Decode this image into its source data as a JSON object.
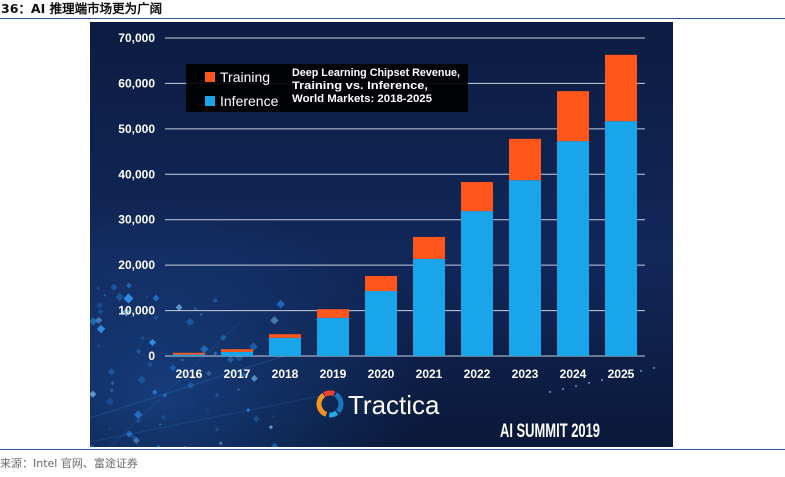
{
  "header": {
    "title": "36：AI 推理端市场更为广阔"
  },
  "footer": {
    "source": "来源：Intel 官网、富途证券"
  },
  "colors": {
    "rule": "#2f5597",
    "chart_background": "#12285a",
    "gridline": "#c8d0de"
  },
  "branding": {
    "logo_text": "Tractica",
    "event": "AI SUMMIT 2019"
  },
  "chart_data": {
    "type": "bar",
    "stacked": true,
    "title_lines": [
      "Deep Learning Chipset Revenue,",
      "Training vs. Inference,",
      "World Markets: 2018-2025"
    ],
    "categories": [
      "2016",
      "2017",
      "2018",
      "2019",
      "2020",
      "2021",
      "2022",
      "2023",
      "2024",
      "2025"
    ],
    "series": [
      {
        "name": "Inference",
        "color": "#18a5ea",
        "values": [
          300,
          900,
          4000,
          8400,
          14300,
          21400,
          31900,
          38700,
          47300,
          51700
        ]
      },
      {
        "name": "Training",
        "color": "#ff561c",
        "values": [
          400,
          600,
          800,
          1900,
          3300,
          4800,
          6400,
          9100,
          11000,
          14600
        ]
      }
    ],
    "yticks": [
      "0",
      "10,000",
      "20,000",
      "30,000",
      "40,000",
      "50,000",
      "60,000",
      "70,000"
    ],
    "ylim": [
      0,
      70000
    ],
    "grid": true,
    "legend": "top-left"
  }
}
